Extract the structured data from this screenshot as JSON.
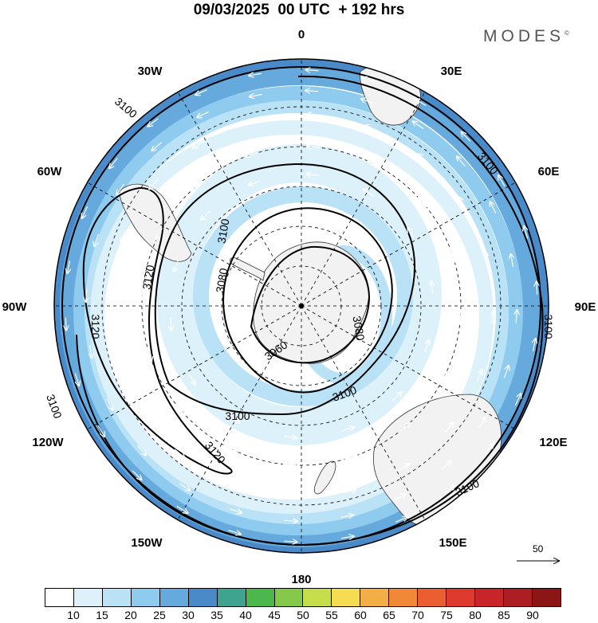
{
  "header": {
    "title": "09/03/2025  00 UTC  + 192 hrs",
    "brand": "MODES",
    "brand_mark": "©"
  },
  "map": {
    "projection": "south-polar-stereographic",
    "lon_labels": [
      {
        "id": "0",
        "text": "0"
      },
      {
        "id": "30e",
        "text": "30E"
      },
      {
        "id": "60e",
        "text": "60E"
      },
      {
        "id": "90e",
        "text": "90E"
      },
      {
        "id": "120e",
        "text": "120E"
      },
      {
        "id": "150e",
        "text": "150E"
      },
      {
        "id": "180",
        "text": "180"
      },
      {
        "id": "150w",
        "text": "150W"
      },
      {
        "id": "120w",
        "text": "120W"
      },
      {
        "id": "90w",
        "text": "90W"
      },
      {
        "id": "60w",
        "text": "60W"
      },
      {
        "id": "30w",
        "text": "30W"
      }
    ],
    "contour_labels": [
      "3100",
      "3100",
      "3100",
      "3100",
      "3100",
      "3100",
      "3100",
      "3100",
      "3120",
      "3120",
      "3120",
      "3080",
      "3080",
      "3060"
    ],
    "colors": {
      "land": "#f2f2f2",
      "coast": "#333333",
      "wind_15": "#ddf1fb",
      "wind_20": "#b9e2f6",
      "wind_25": "#8ecbee",
      "wind_30": "#66a9dc",
      "wind_35": "#4a8ac9"
    }
  },
  "vector_reference": {
    "label": "50"
  },
  "colorbar": {
    "labels": [
      "10",
      "15",
      "20",
      "25",
      "30",
      "35",
      "40",
      "45",
      "50",
      "55",
      "60",
      "65",
      "70",
      "75",
      "80",
      "85",
      "90"
    ],
    "colors": [
      "#ffffff",
      "#ddf1fb",
      "#b9e2f6",
      "#8ecbee",
      "#66a9dc",
      "#4a8ac9",
      "#3ea38f",
      "#4cb84c",
      "#86c94a",
      "#c6dd4c",
      "#f6dc52",
      "#f4ae46",
      "#f08838",
      "#ea5e32",
      "#df3a2e",
      "#c8252a",
      "#ac1d24",
      "#8c1515"
    ]
  }
}
